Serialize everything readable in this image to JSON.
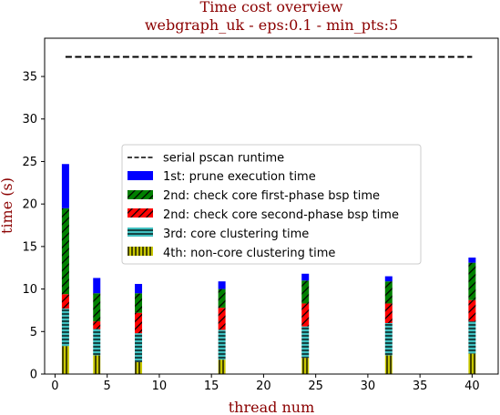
{
  "chart_data": {
    "type": "bar",
    "title": "Time cost overview",
    "subtitle": "webgraph_uk - eps:0.1 - min_pts:5",
    "xlabel": "thread num",
    "ylabel": "time (s)",
    "xlim": [
      -1,
      42.5
    ],
    "ylim": [
      0,
      39.5
    ],
    "xticks": [
      0,
      5,
      10,
      15,
      20,
      25,
      30,
      35,
      40
    ],
    "yticks": [
      0,
      5,
      10,
      15,
      20,
      25,
      30,
      35
    ],
    "x": [
      1,
      4,
      8,
      16,
      24,
      32,
      40
    ],
    "series": [
      {
        "name": "4th: non-core clustering time",
        "color": "#c8c800",
        "hatch": "vertical",
        "values": [
          3.3,
          2.2,
          1.4,
          1.7,
          1.9,
          2.2,
          2.4
        ]
      },
      {
        "name": "3rd: core clustering time",
        "color": "#40c0c0",
        "hatch": "horizontal",
        "values": [
          4.4,
          3.1,
          3.4,
          3.5,
          3.7,
          3.8,
          3.8
        ]
      },
      {
        "name": "2nd: check core second-phase bsp time",
        "color": "#ff0000",
        "hatch": "diagonal",
        "values": [
          1.7,
          0.9,
          2.4,
          2.6,
          2.7,
          2.3,
          2.5
        ]
      },
      {
        "name": "2nd: check core first-phase bsp time",
        "color": "#008000",
        "hatch": "diagonal",
        "values": [
          10.1,
          3.3,
          2.3,
          2.2,
          2.7,
          2.6,
          4.4
        ]
      },
      {
        "name": "1st: prune execution time",
        "color": "#0000ff",
        "hatch": "none",
        "values": [
          5.2,
          1.8,
          1.1,
          0.9,
          0.8,
          0.6,
          0.6
        ]
      }
    ],
    "reference_line": {
      "name": "serial pscan runtime",
      "value": 37.3,
      "x_range": [
        1,
        40
      ],
      "style": "dashed",
      "color": "#000000"
    },
    "legend": {
      "placement": "center",
      "order": [
        "serial pscan runtime",
        "1st: prune execution time",
        "2nd: check core first-phase bsp time",
        "2nd: check core second-phase bsp time",
        "3rd: core clustering time",
        "4th: non-core clustering time"
      ]
    },
    "grid": false
  }
}
